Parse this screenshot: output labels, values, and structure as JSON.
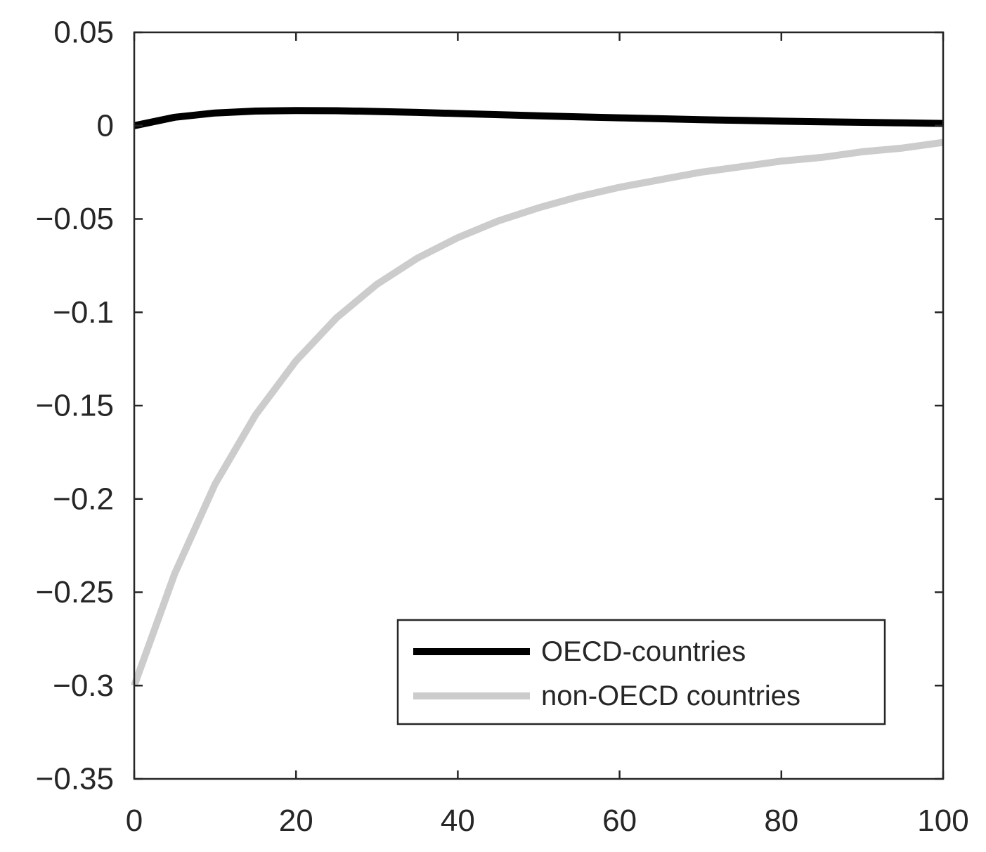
{
  "chart_data": {
    "type": "line",
    "title": "",
    "xlabel": "",
    "ylabel": "",
    "xlim": [
      0,
      100
    ],
    "ylim": [
      -0.35,
      0.05
    ],
    "x_ticks": [
      0,
      20,
      40,
      60,
      80,
      100
    ],
    "y_ticks": [
      0.05,
      0,
      -0.05,
      -0.1,
      -0.15,
      -0.2,
      -0.25,
      -0.3,
      -0.35
    ],
    "x_tick_labels": [
      "0",
      "20",
      "40",
      "60",
      "80",
      "100"
    ],
    "y_tick_labels": [
      "0.05",
      "0",
      "−0.05",
      "−0.1",
      "−0.15",
      "−0.2",
      "−0.25",
      "−0.3",
      "−0.35"
    ],
    "grid": false,
    "legend": {
      "position": "bottom-right",
      "entries": [
        "OECD-countries",
        "non-OECD countries"
      ]
    },
    "x": [
      0,
      5,
      10,
      15,
      20,
      25,
      30,
      35,
      40,
      45,
      50,
      55,
      60,
      65,
      70,
      75,
      80,
      85,
      90,
      95,
      100
    ],
    "series": [
      {
        "name": "OECD-countries",
        "color": "#000000",
        "values": [
          0.0,
          0.0045,
          0.0068,
          0.0078,
          0.0081,
          0.008,
          0.0076,
          0.0071,
          0.0065,
          0.0059,
          0.0053,
          0.0047,
          0.0042,
          0.0037,
          0.0032,
          0.0028,
          0.0024,
          0.0021,
          0.0018,
          0.0015,
          0.0012
        ]
      },
      {
        "name": "non-OECD countries",
        "color": "#cccccc",
        "values": [
          -0.3,
          -0.24,
          -0.192,
          -0.155,
          -0.126,
          -0.103,
          -0.085,
          -0.071,
          -0.06,
          -0.051,
          -0.044,
          -0.038,
          -0.033,
          -0.029,
          -0.025,
          -0.022,
          -0.019,
          -0.017,
          -0.014,
          -0.012,
          -0.009
        ]
      }
    ]
  }
}
